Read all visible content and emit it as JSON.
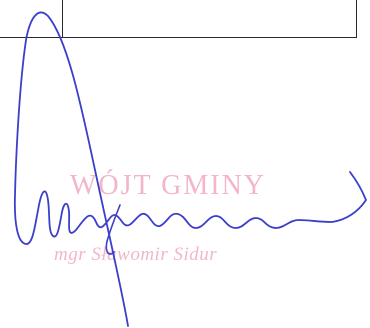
{
  "stamp": {
    "title": "WÓJT GMINY",
    "name": "mgr Sławomir Sidur",
    "color": "#f2b6c8"
  },
  "signature": {
    "ink_color": "#3b3fc9"
  },
  "rule_color": "#2a2a2a"
}
